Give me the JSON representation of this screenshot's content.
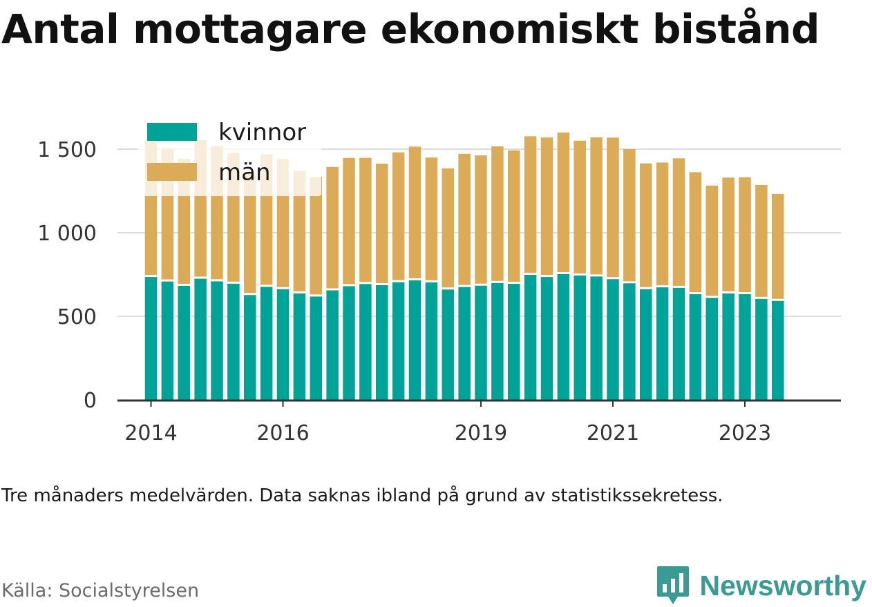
{
  "title": "Antal mottagare ekonomiskt bistånd",
  "note": "Tre månaders medelvärden. Data saknas ibland på grund av statistikssekretess.",
  "source": "Källa: Socialstyrelsen",
  "brand": {
    "name": "Newsworthy",
    "icon": "bar-chart-logo-icon",
    "color": "#3a9a94"
  },
  "chart_data": {
    "type": "bar",
    "stacked": true,
    "grid": true,
    "legend_position": "top-left",
    "x_start": 2014,
    "x_step": 0.25,
    "x_range": [
      2013.75,
      2024.35
    ],
    "x_ticks": [
      {
        "value": 2014,
        "label": "2014"
      },
      {
        "value": 2016,
        "label": "2016"
      },
      {
        "value": 2019,
        "label": "2019"
      },
      {
        "value": 2021,
        "label": "2021"
      },
      {
        "value": 2023,
        "label": "2023"
      }
    ],
    "ylim": [
      0,
      1650
    ],
    "y_ticks": [
      {
        "value": 0,
        "label": "0"
      },
      {
        "value": 500,
        "label": "500"
      },
      {
        "value": 1000,
        "label": "1 000"
      },
      {
        "value": 1500,
        "label": "1 500"
      }
    ],
    "series": [
      {
        "name": "kvinnor",
        "color": "#00a398",
        "values": [
          735,
          708,
          682,
          725,
          709,
          695,
          627,
          676,
          662,
          637,
          618,
          655,
          680,
          693,
          686,
          704,
          715,
          703,
          660,
          675,
          683,
          699,
          694,
          748,
          735,
          752,
          744,
          738,
          722,
          697,
          662,
          673,
          670,
          632,
          610,
          637,
          632,
          604,
          592
        ]
      },
      {
        "name": "män",
        "color": "#dbab57",
        "values": [
          815,
          797,
          760,
          830,
          809,
          783,
          735,
          793,
          778,
          733,
          715,
          738,
          767,
          755,
          727,
          777,
          800,
          747,
          725,
          797,
          780,
          818,
          799,
          829,
          835,
          848,
          807,
          833,
          847,
          803,
          753,
          747,
          775,
          730,
          672,
          693,
          700,
          681,
          640
        ]
      }
    ]
  }
}
